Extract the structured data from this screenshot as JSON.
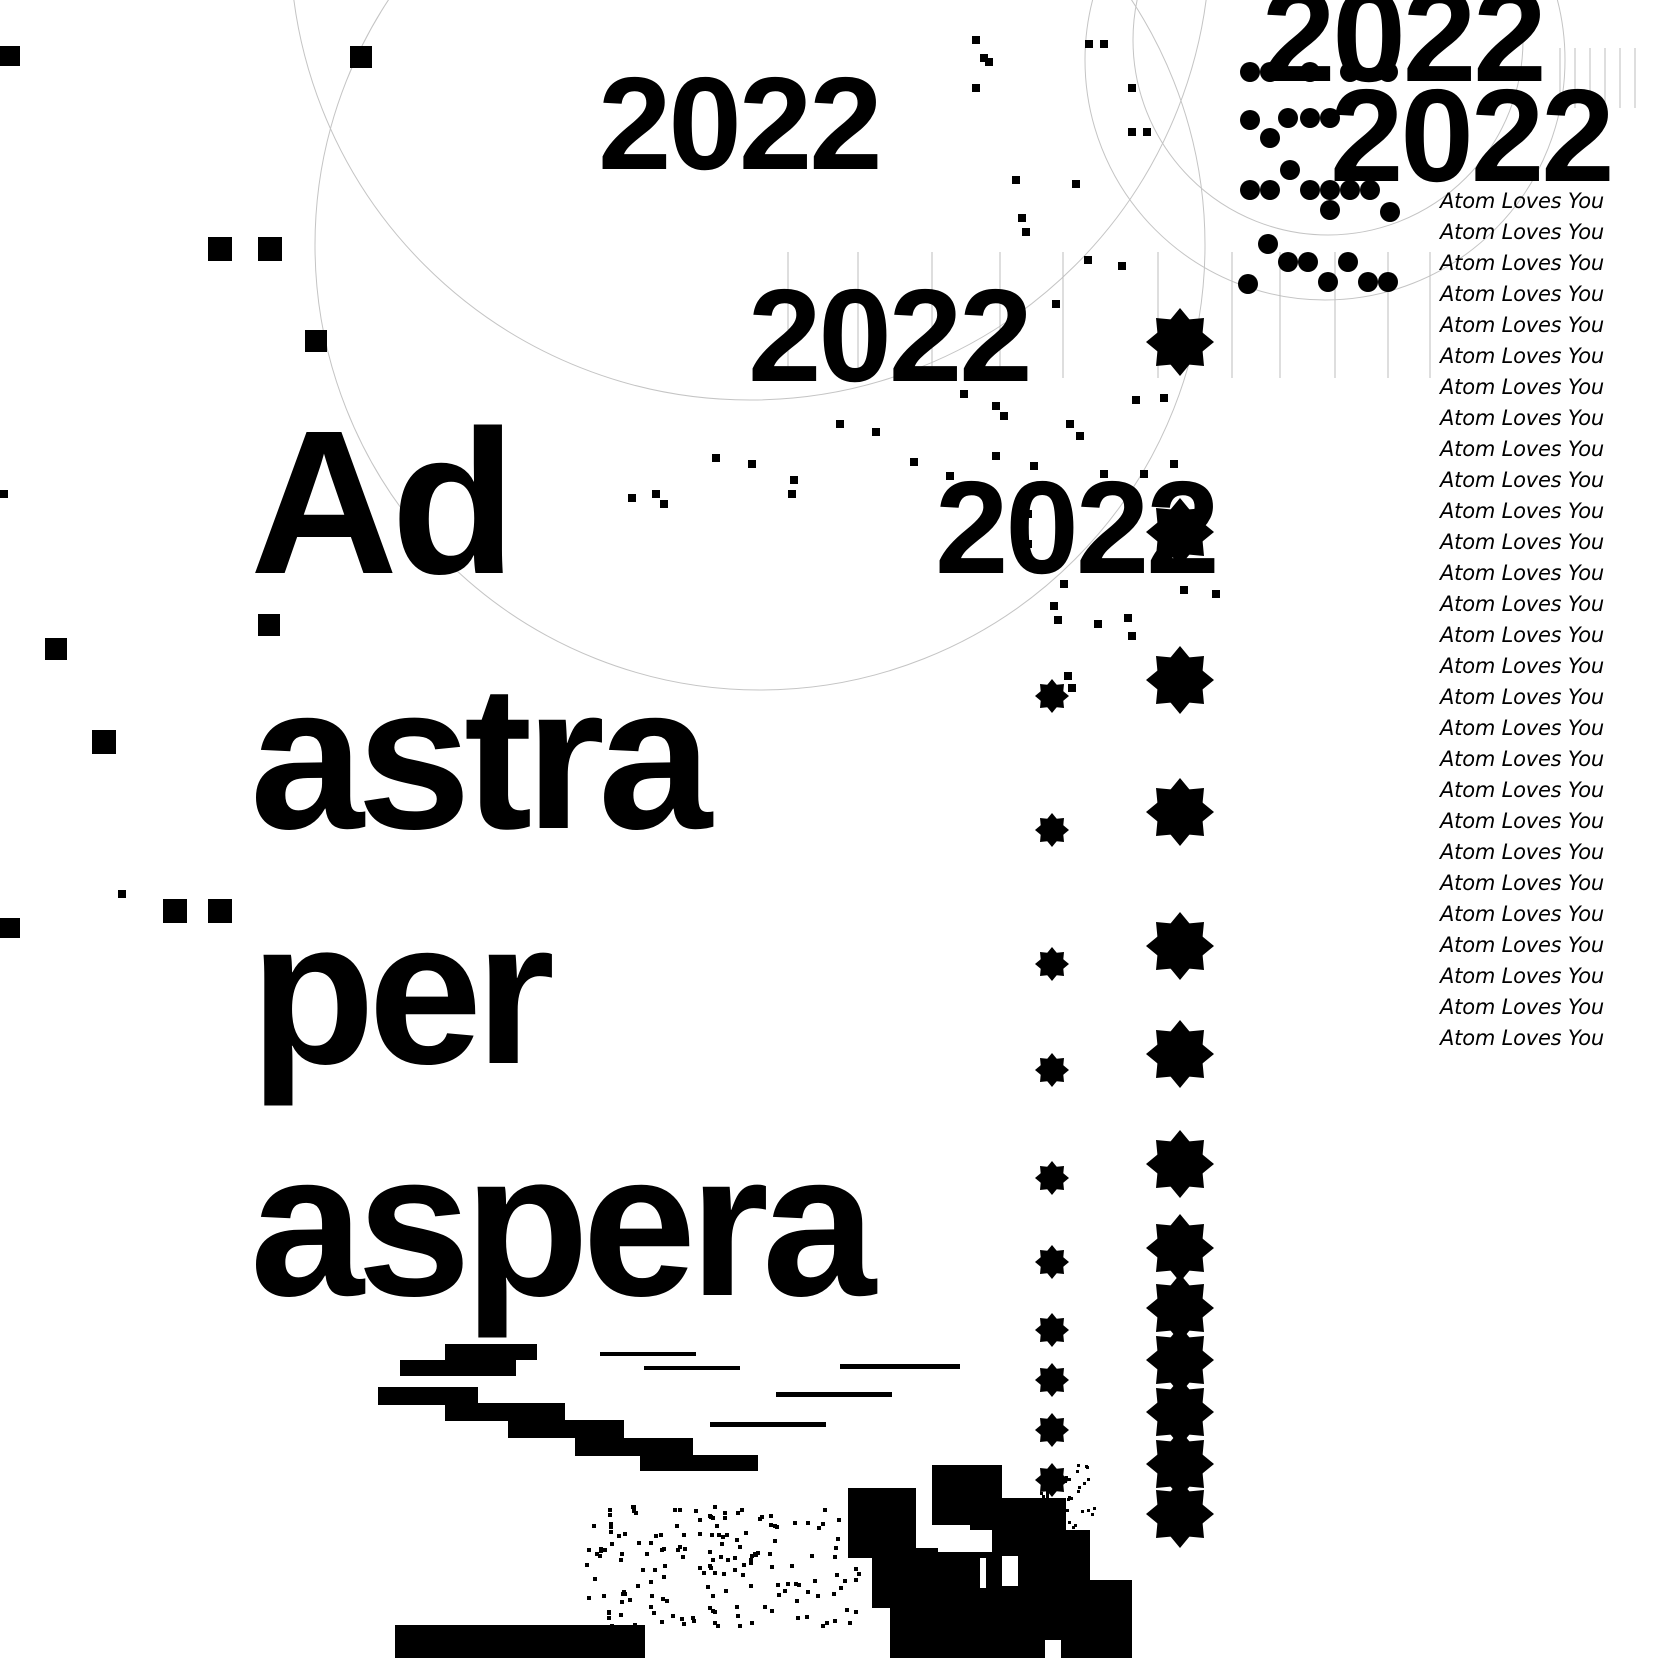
{
  "poster": {
    "year_labels": [
      "2022",
      "2022",
      "2022",
      "2022",
      "2022"
    ],
    "headline_words": [
      "Ad",
      "astra",
      "per",
      "aspera"
    ],
    "repeated_phrase": "Atom Loves You",
    "repeated_phrase_count": 28
  },
  "colors": {
    "background": "#ffffff",
    "ink": "#000000",
    "hairline": "#bdbdbd"
  },
  "icons": {
    "gear_shape": "gear-icon",
    "pixel_block": "pixel-square-icon",
    "dot": "dot-icon"
  }
}
